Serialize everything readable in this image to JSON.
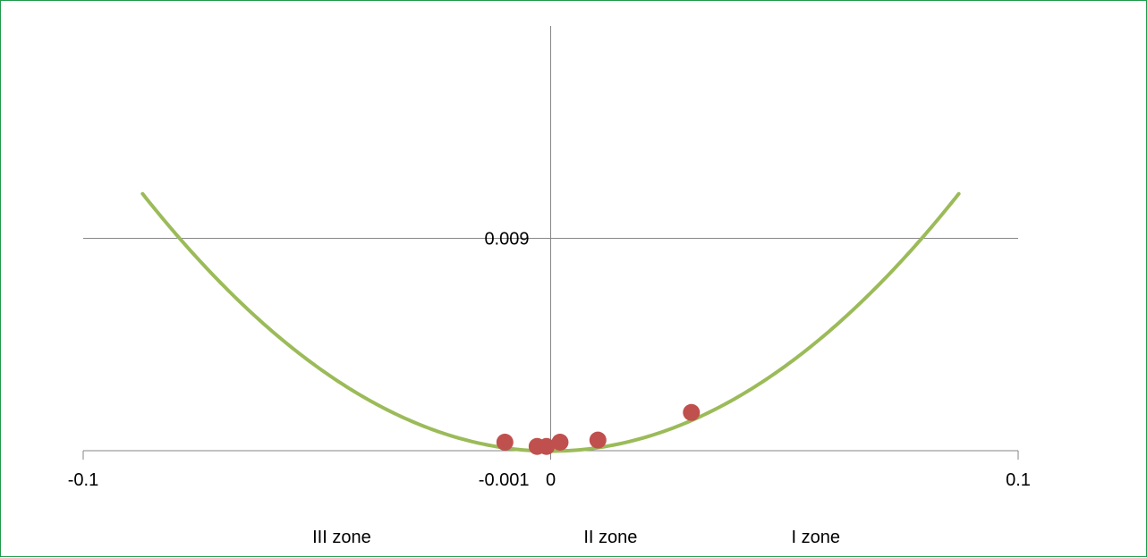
{
  "chart_data": {
    "type": "scatter",
    "title": "",
    "xlabel": "",
    "ylabel": "",
    "xlim": [
      -0.1,
      0.1
    ],
    "ylim": [
      -0.001,
      0.019
    ],
    "grid": true,
    "x_tick_labels": [
      {
        "value": -0.1,
        "label": "-0.1"
      },
      {
        "value": 0,
        "label": "0"
      },
      {
        "value": 0.1,
        "label": "0.1"
      }
    ],
    "y_tick_labels": [
      {
        "value": -0.001,
        "label": "-0.001"
      },
      {
        "value": 0.009,
        "label": "0.009"
      }
    ],
    "series": [
      {
        "type": "scatter",
        "color": "#c0504d",
        "points": [
          {
            "x": -0.0098,
            "y": -0.0006
          },
          {
            "x": -0.0029,
            "y": -0.0008
          },
          {
            "x": -0.0009,
            "y": -0.0008
          },
          {
            "x": 0.002,
            "y": -0.0006
          },
          {
            "x": 0.0101,
            "y": -0.0005
          },
          {
            "x": 0.0301,
            "y": 0.0008
          }
        ]
      },
      {
        "type": "line",
        "color": "#9bbb59",
        "fit": "quadratic",
        "coefficients": {
          "a": 1.59,
          "b": 0.0,
          "c": -0.00102
        },
        "x_range": [
          -0.0873,
          0.0873
        ]
      }
    ],
    "zone_labels": [
      {
        "x": -0.0447,
        "text": "III zone"
      },
      {
        "x": 0.0128,
        "text": "II zone"
      },
      {
        "x": 0.0567,
        "text": "I zone"
      }
    ]
  }
}
